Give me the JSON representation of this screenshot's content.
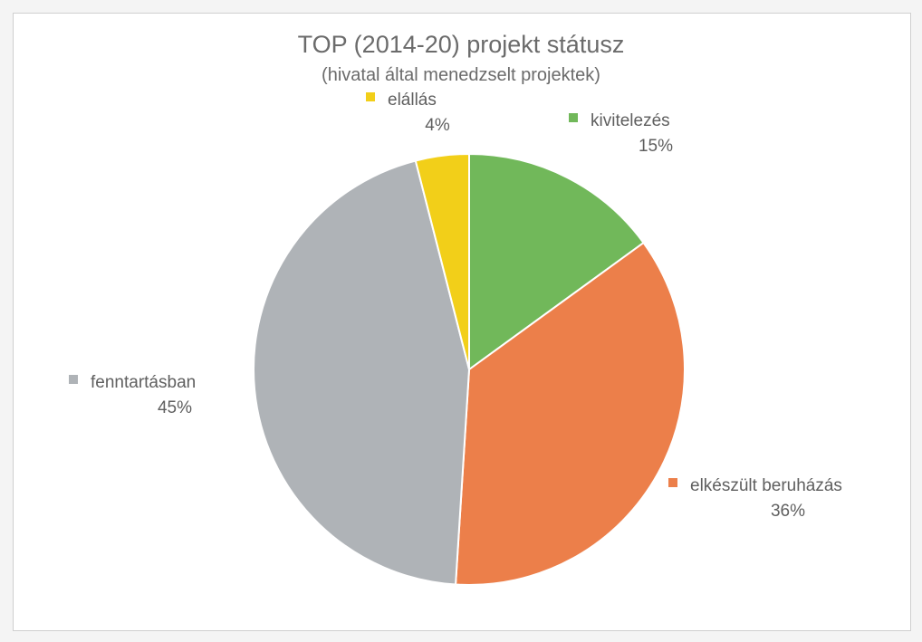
{
  "chart_data": {
    "type": "pie",
    "title": "TOP (2014-20) projekt státusz",
    "subtitle": "(hivatal által menedzselt projektek)",
    "slices": [
      {
        "name": "kivitelezés",
        "value": 15,
        "label": "15%",
        "color": "#71b85a"
      },
      {
        "name": "elkészült beruházás",
        "value": 36,
        "label": "36%",
        "color": "#ec7f4a"
      },
      {
        "name": "fenntartásban",
        "value": 45,
        "label": "45%",
        "color": "#afb3b7"
      },
      {
        "name": "elállás",
        "value": 4,
        "label": "4%",
        "color": "#f2cf19"
      }
    ],
    "start_angle_deg": 0,
    "direction": "clockwise",
    "legend": "none",
    "data_labels": "outside"
  }
}
